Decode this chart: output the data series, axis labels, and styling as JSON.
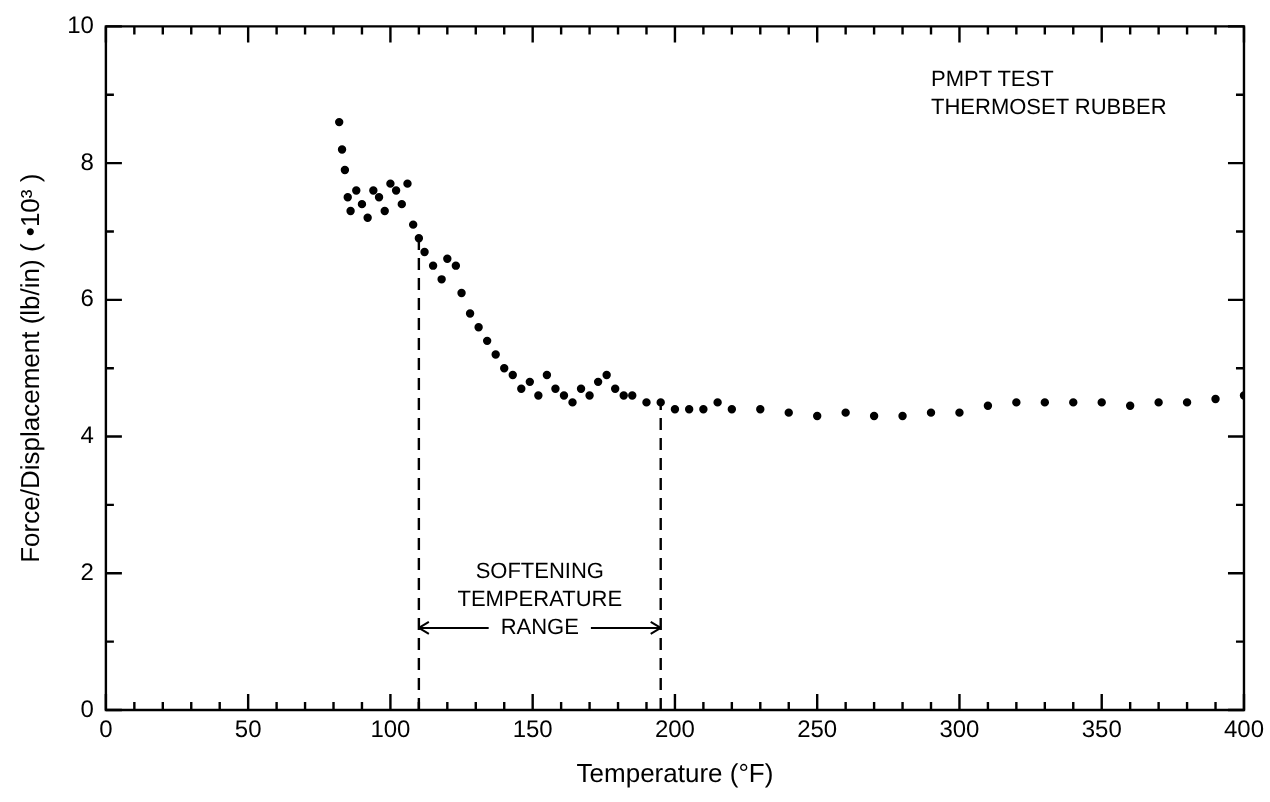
{
  "chart_data": {
    "type": "scatter",
    "title": "PMPT TEST",
    "subtitle": "THERMOSET RUBBER",
    "xlabel": "Temperature (°F)",
    "ylabel": "Force/Displacement (lb/in) ( •10³ )",
    "x": [
      82,
      83,
      84,
      85,
      86,
      88,
      90,
      92,
      94,
      96,
      98,
      100,
      102,
      104,
      106,
      108,
      110,
      112,
      115,
      118,
      120,
      123,
      125,
      128,
      131,
      134,
      137,
      140,
      143,
      146,
      149,
      152,
      155,
      158,
      161,
      164,
      167,
      170,
      173,
      176,
      179,
      182,
      185,
      190,
      195,
      200,
      205,
      210,
      215,
      220,
      230,
      240,
      250,
      260,
      270,
      280,
      290,
      300,
      310,
      320,
      330,
      340,
      350,
      360,
      370,
      380,
      390,
      400
    ],
    "series": [
      {
        "color": "#000000",
        "values": [
          8.6,
          8.2,
          7.9,
          7.5,
          7.3,
          7.6,
          7.4,
          7.2,
          7.6,
          7.5,
          7.3,
          7.7,
          7.6,
          7.4,
          7.7,
          7.1,
          6.9,
          6.7,
          6.5,
          6.3,
          6.6,
          6.5,
          6.1,
          5.8,
          5.6,
          5.4,
          5.2,
          5.0,
          4.9,
          4.7,
          4.8,
          4.6,
          4.9,
          4.7,
          4.6,
          4.5,
          4.7,
          4.6,
          4.8,
          4.9,
          4.7,
          4.6,
          4.6,
          4.5,
          4.5,
          4.4,
          4.4,
          4.4,
          4.5,
          4.4,
          4.4,
          4.35,
          4.3,
          4.35,
          4.3,
          4.3,
          4.35,
          4.35,
          4.45,
          4.5,
          4.5,
          4.5,
          4.5,
          4.45,
          4.5,
          4.5,
          4.55,
          4.6
        ]
      }
    ],
    "xlim": [
      0,
      400
    ],
    "ylim": [
      0,
      10
    ],
    "xticks": [
      0,
      {
        "value": 10,
        "label": null
      },
      {
        "value": 20,
        "label": null
      },
      {
        "value": 30,
        "label": null
      },
      {
        "value": 40,
        "label": null
      },
      50,
      {
        "value": 60,
        "label": null
      },
      {
        "value": 70,
        "label": null
      },
      {
        "value": 80,
        "label": null
      },
      {
        "value": 90,
        "label": null
      },
      100,
      {
        "value": 110,
        "label": null
      },
      {
        "value": 120,
        "label": null
      },
      {
        "value": 130,
        "label": null
      },
      {
        "value": 140,
        "label": null
      },
      150,
      {
        "value": 160,
        "label": null
      },
      {
        "value": 170,
        "label": null
      },
      {
        "value": 180,
        "label": null
      },
      {
        "value": 190,
        "label": null
      },
      200,
      {
        "value": 210,
        "label": null
      },
      {
        "value": 220,
        "label": null
      },
      {
        "value": 230,
        "label": null
      },
      {
        "value": 240,
        "label": null
      },
      250,
      {
        "value": 260,
        "label": null
      },
      {
        "value": 270,
        "label": null
      },
      {
        "value": 280,
        "label": null
      },
      {
        "value": 290,
        "label": null
      },
      300,
      {
        "value": 310,
        "label": null
      },
      {
        "value": 320,
        "label": null
      },
      {
        "value": 330,
        "label": null
      },
      {
        "value": 340,
        "label": null
      },
      350,
      {
        "value": 360,
        "label": null
      },
      {
        "value": 370,
        "label": null
      },
      {
        "value": 380,
        "label": null
      },
      {
        "value": 390,
        "label": null
      },
      400
    ],
    "yticks": [
      0,
      {
        "value": 1,
        "label": null
      },
      2,
      {
        "value": 3,
        "label": null
      },
      4,
      {
        "value": 5,
        "label": null
      },
      6,
      {
        "value": 7,
        "label": null
      },
      8,
      {
        "value": 9,
        "label": null
      },
      10
    ],
    "ref_lines": [
      {
        "axis": "x",
        "value": 110,
        "line_style": "dashed"
      },
      {
        "axis": "x",
        "value": 195,
        "line_style": "dashed"
      }
    ],
    "annotations": [
      {
        "text": "SOFTENING TEMPERATURE RANGE",
        "x": 110,
        "y": 1.2
      }
    ],
    "grid": false,
    "legend": false,
    "marker": "circle"
  }
}
